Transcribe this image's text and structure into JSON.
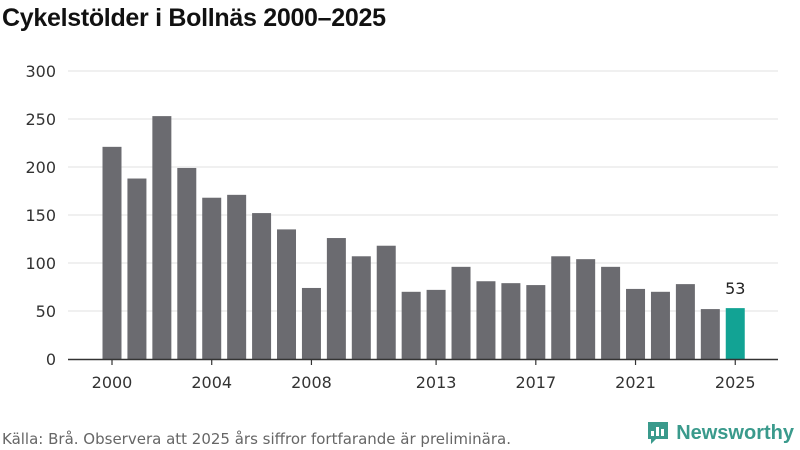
{
  "title": "Cykelstölder i Bollnäs 2000–2025",
  "source": "Källa: Brå. Observera att 2025 års siffror fortfarande är preliminära.",
  "brand": {
    "name": "Newsworthy",
    "icon": "newsworthy-logo-icon"
  },
  "colors": {
    "bar": "#6b6b70",
    "highlight": "#12a394",
    "grid": "#e2e2e2",
    "axis": "#333333",
    "brand": "#3a9a8c"
  },
  "chart_data": {
    "type": "bar",
    "title": "Cykelstölder i Bollnäs 2000–2025",
    "xlabel": "",
    "ylabel": "",
    "categories": [
      "2000",
      "2001",
      "2002",
      "2003",
      "2004",
      "2005",
      "2006",
      "2007",
      "2008",
      "2009",
      "2010",
      "2011",
      "2012",
      "2013",
      "2014",
      "2015",
      "2016",
      "2017",
      "2018",
      "2019",
      "2020",
      "2021",
      "2022",
      "2023",
      "2024",
      "2025"
    ],
    "values": [
      221,
      188,
      253,
      199,
      168,
      171,
      152,
      135,
      74,
      126,
      107,
      118,
      70,
      72,
      96,
      81,
      79,
      77,
      107,
      104,
      96,
      73,
      70,
      78,
      52,
      53
    ],
    "x_tick_labels": [
      "2000",
      "2004",
      "2008",
      "2013",
      "2017",
      "2021",
      "2025"
    ],
    "y_tick_labels": [
      "0",
      "50",
      "100",
      "150",
      "200",
      "250",
      "300"
    ],
    "ylim": [
      0,
      300
    ],
    "grid": true,
    "highlight_category": "2025",
    "annotation": "53"
  }
}
